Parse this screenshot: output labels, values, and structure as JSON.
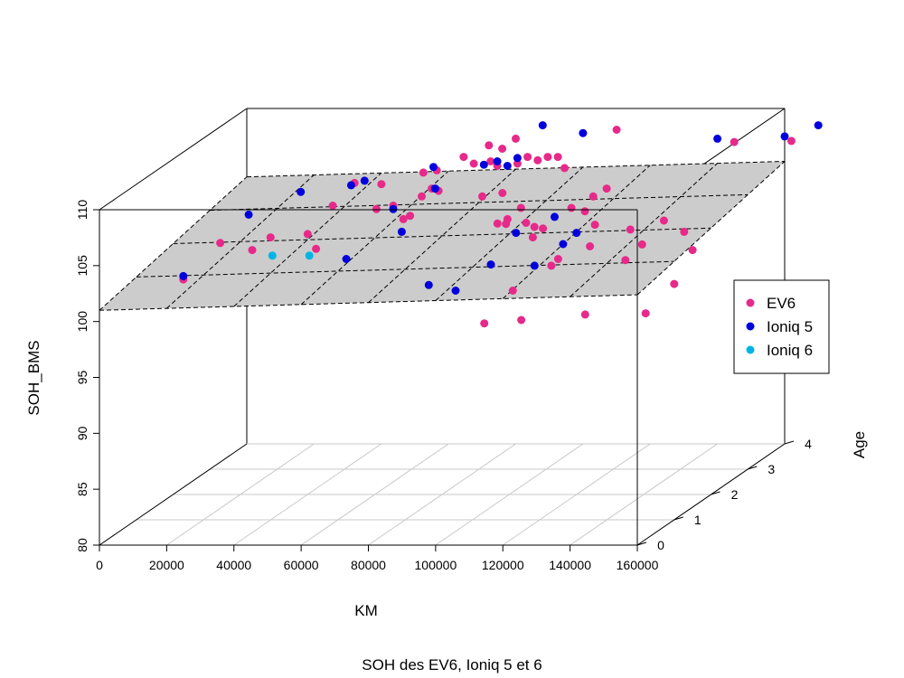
{
  "chart_data": {
    "type": "scatter3d",
    "title": "",
    "caption": "SOH des EV6, Ioniq 5 et 6",
    "xlabel": "KM",
    "ylabel": "Age",
    "zlabel": "SOH_BMS",
    "xlim": [
      0,
      160000
    ],
    "ylim": [
      0,
      4
    ],
    "zlim": [
      80,
      110
    ],
    "x_ticks": [
      "0",
      "20000",
      "40000",
      "60000",
      "80000",
      "100000",
      "120000",
      "140000",
      "160000"
    ],
    "y_ticks": [
      "0",
      "1",
      "2",
      "3",
      "4"
    ],
    "z_ticks": [
      "80",
      "85",
      "90",
      "95",
      "100",
      "105",
      "110"
    ],
    "regression_plane": {
      "intercept": 101.0,
      "slope_km": 8.7e-06,
      "slope_age": 0.72
    },
    "legend": {
      "placement": "right",
      "entries": [
        {
          "label": "EV6",
          "color": "#e7298a"
        },
        {
          "label": "Ioniq 5",
          "color": "#0000dd"
        },
        {
          "label": "Ioniq 6",
          "color": "#00b4e6"
        }
      ]
    },
    "series": [
      {
        "name": "EV6",
        "color": "#e7298a",
        "points": [
          [
            14000,
            1.0,
            101.5
          ],
          [
            14000,
            2.0,
            102.5
          ],
          [
            29000,
            1.5,
            103.0
          ],
          [
            29000,
            2.0,
            103.0
          ],
          [
            40000,
            2.0,
            103.3
          ],
          [
            48000,
            1.5,
            103.1
          ],
          [
            42000,
            2.5,
            104.7
          ],
          [
            43000,
            3.0,
            105.6
          ],
          [
            51000,
            3.0,
            105.5
          ],
          [
            55000,
            2.5,
            104.4
          ],
          [
            60000,
            2.5,
            104.7
          ],
          [
            63000,
            3.0,
            104.4
          ],
          [
            66000,
            3.0,
            105.1
          ],
          [
            58000,
            3.5,
            105.4
          ],
          [
            62000,
            3.5,
            105.6
          ],
          [
            63000,
            2.5,
            103.5
          ],
          [
            68000,
            3.0,
            104.9
          ],
          [
            70000,
            3.5,
            106.8
          ],
          [
            72000,
            4.0,
            106.7
          ],
          [
            73000,
            3.5,
            106.2
          ],
          [
            76000,
            4.0,
            106.4
          ],
          [
            78000,
            3.5,
            106.4
          ],
          [
            80000,
            3.5,
            106.0
          ],
          [
            81000,
            3.0,
            104.4
          ],
          [
            80000,
            4.0,
            107.3
          ],
          [
            86000,
            3.5,
            106.2
          ],
          [
            89000,
            3.5,
            106.8
          ],
          [
            87000,
            3.0,
            104.7
          ],
          [
            92000,
            3.5,
            106.5
          ],
          [
            95000,
            3.5,
            106.8
          ],
          [
            98000,
            3.5,
            106.8
          ],
          [
            100000,
            3.5,
            105.8
          ],
          [
            91000,
            2.5,
            103.1
          ],
          [
            94000,
            2.5,
            103.5
          ],
          [
            98000,
            2.5,
            104.5
          ],
          [
            99000,
            2.0,
            104.2
          ],
          [
            105000,
            2.0,
            104.3
          ],
          [
            107000,
            2.0,
            103.0
          ],
          [
            110000,
            2.0,
            103.8
          ],
          [
            113000,
            2.5,
            104.5
          ],
          [
            117000,
            2.5,
            104.2
          ],
          [
            120000,
            2.5,
            103.0
          ],
          [
            114000,
            3.0,
            104.4
          ],
          [
            118000,
            3.0,
            105.1
          ],
          [
            120000,
            1.5,
            102.2
          ],
          [
            118000,
            1.5,
            101.6
          ],
          [
            124000,
            2.0,
            102.2
          ],
          [
            112000,
            1.0,
            100.5
          ],
          [
            102000,
            2.5,
            102.8
          ],
          [
            109000,
            0.5,
            98.7
          ],
          [
            120000,
            0.5,
            99.0
          ],
          [
            136000,
            2.0,
            103.7
          ],
          [
            140000,
            1.5,
            102.1
          ],
          [
            145000,
            4.0,
            107.0
          ],
          [
            146000,
            2.0,
            104.5
          ],
          [
            145000,
            1.5,
            103.5
          ],
          [
            152000,
            2.0,
            103.5
          ],
          [
            160000,
            1.5,
            103.0
          ],
          [
            139000,
            0.5,
            99.5
          ],
          [
            157000,
            0.5,
            99.6
          ],
          [
            160000,
            1.0,
            101.1
          ],
          [
            110000,
            4.0,
            108.1
          ],
          [
            162000,
            4.0,
            107.1
          ],
          [
            65000,
            2.5,
            103.8
          ]
        ]
      },
      {
        "name": "Ioniq 5",
        "color": "#0000dd",
        "points": [
          [
            14000,
            1.0,
            101.8
          ],
          [
            17000,
            2.5,
            103.9
          ],
          [
            27000,
            3.0,
            104.8
          ],
          [
            42000,
            3.0,
            105.4
          ],
          [
            46000,
            3.0,
            105.8
          ],
          [
            61000,
            3.5,
            105.9
          ],
          [
            60000,
            2.5,
            104.4
          ],
          [
            67000,
            3.0,
            105.1
          ],
          [
            76000,
            3.5,
            106.1
          ],
          [
            80000,
            3.5,
            106.4
          ],
          [
            83000,
            3.5,
            106.0
          ],
          [
            86000,
            3.5,
            106.7
          ],
          [
            57000,
            1.5,
            102.2
          ],
          [
            68000,
            2.0,
            103.5
          ],
          [
            87000,
            1.0,
            101.0
          ],
          [
            95000,
            1.0,
            100.5
          ],
          [
            100000,
            1.5,
            101.7
          ],
          [
            102000,
            2.0,
            103.4
          ],
          [
            108000,
            2.5,
            103.7
          ],
          [
            113000,
            1.5,
            101.6
          ],
          [
            116000,
            2.0,
            102.4
          ],
          [
            120000,
            2.0,
            103.4
          ],
          [
            88000,
            4.0,
            108.5
          ],
          [
            100000,
            4.0,
            107.8
          ],
          [
            140000,
            4.0,
            107.3
          ],
          [
            160000,
            4.0,
            107.5
          ],
          [
            170000,
            4.0,
            108.5
          ]
        ]
      },
      {
        "name": "Ioniq 6",
        "color": "#00b4e6",
        "points": [
          [
            35000,
            1.5,
            102.5
          ],
          [
            46000,
            1.5,
            102.5
          ]
        ]
      }
    ]
  }
}
